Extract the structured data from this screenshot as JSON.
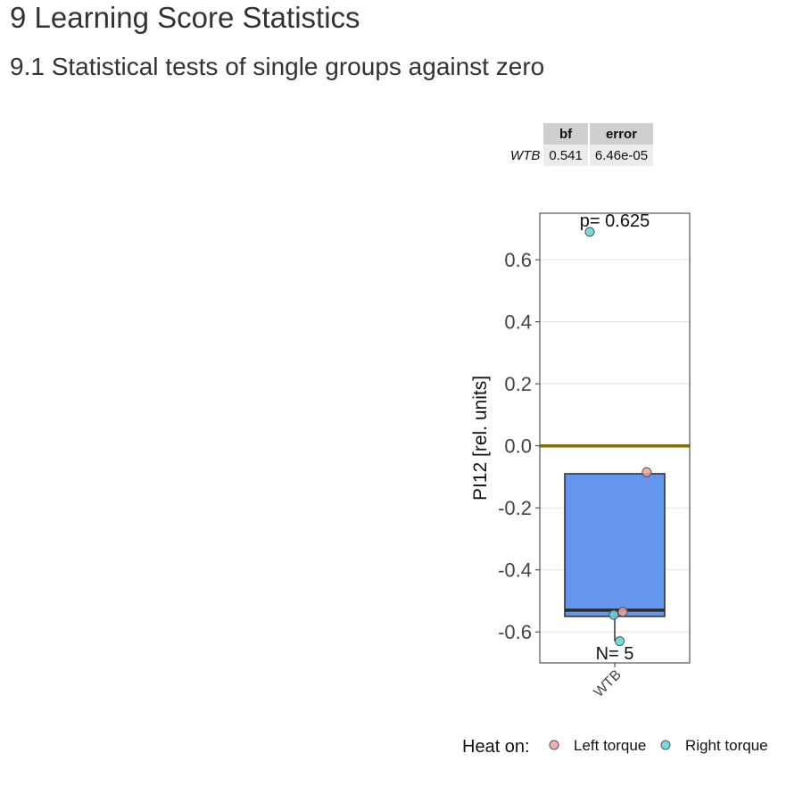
{
  "page": {
    "heading1": "9 Learning Score Statistics",
    "heading2": "9.1 Statistical tests of single groups against zero"
  },
  "bf_table": {
    "headers": [
      "bf",
      "error"
    ],
    "rows": [
      {
        "label": "WTB",
        "bf": "0.541",
        "error": "6.46e-05"
      }
    ]
  },
  "chart_data": {
    "type": "box",
    "categories": [
      "WTB"
    ],
    "ylabel": "PI12 [rel. units]",
    "xlabel": "",
    "ylim": [
      -0.7,
      0.75
    ],
    "yticks": [
      -0.6,
      -0.4,
      -0.2,
      0.0,
      0.2,
      0.4,
      0.6
    ],
    "ytick_labels": [
      "-0.6",
      "-0.4",
      "-0.2",
      "0.0",
      "0.2",
      "0.4",
      "0.6"
    ],
    "grid": true,
    "reference_line": {
      "y": 0.0,
      "color": "#8a6d00"
    },
    "box": {
      "category": "WTB",
      "q1": -0.55,
      "median": -0.53,
      "q3": -0.09,
      "whisker_low": -0.63,
      "whisker_high": -0.09,
      "fill": "#6495ed"
    },
    "points": [
      {
        "category": "WTB",
        "y": 0.69,
        "group": "Right torque",
        "jitter": -0.25
      },
      {
        "category": "WTB",
        "y": -0.085,
        "group": "Left torque",
        "jitter": 0.32
      },
      {
        "category": "WTB",
        "y": -0.535,
        "group": "Left torque",
        "jitter": 0.08
      },
      {
        "category": "WTB",
        "y": -0.545,
        "group": "Right torque",
        "jitter": -0.01
      },
      {
        "category": "WTB",
        "y": -0.63,
        "group": "Right torque",
        "jitter": 0.05
      }
    ],
    "annotations": {
      "p_value": "p= 0.625",
      "n": "N= 5"
    },
    "legend": {
      "title": "Heat on:",
      "position": "bottom",
      "entries": [
        {
          "label": "Left torque",
          "color": "#f4a09a"
        },
        {
          "label": "Right torque",
          "color": "#5fd3d3"
        }
      ]
    }
  }
}
